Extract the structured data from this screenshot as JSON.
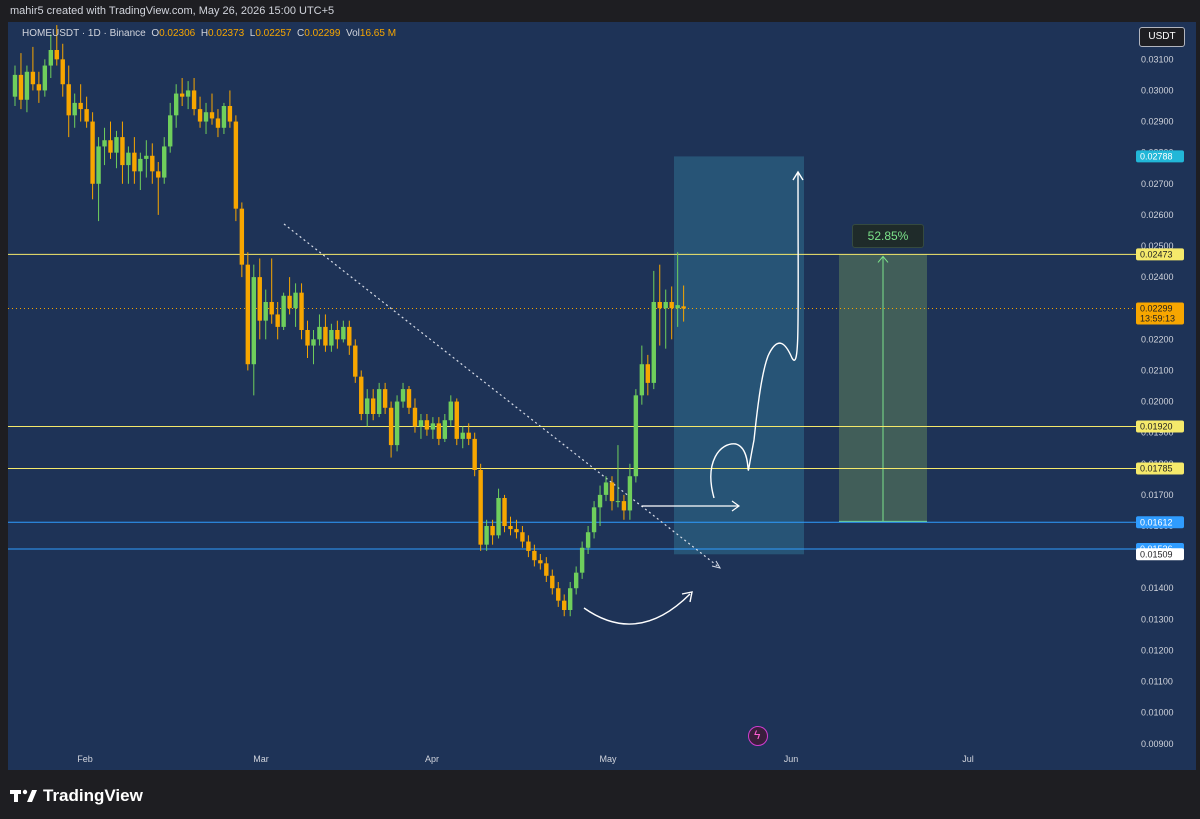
{
  "header": {
    "attribution": "mahir5 created with TradingView.com, May 26, 2026 15:00 UTC+5"
  },
  "legend": {
    "symbol": "HOMEUSDT · 1D · Binance",
    "o_label": "O",
    "o": "0.02306",
    "h_label": "H",
    "h": "0.02373",
    "l_label": "L",
    "l": "0.02257",
    "c_label": "C",
    "c": "0.02299",
    "vol_label": "Vol",
    "vol": "16.65 M"
  },
  "currency_button": "USDT",
  "footer": {
    "logo_text": "TradingView"
  },
  "colors": {
    "background": "#1e3357",
    "up": "#6fcf5c",
    "down": "#f7a600",
    "yellow_line": "#f5e96b",
    "blue_line": "#2f9cff",
    "target_box": "#2f6f8f",
    "profit_box": "#4d6e5a"
  },
  "chart_data": {
    "type": "candlestick",
    "title": "HOMEUSDT · 1D · Binance",
    "x_ticks": [
      "Feb",
      "Mar",
      "Apr",
      "May",
      "Jun",
      "Jul"
    ],
    "y_ticks": [
      "0.03100",
      "0.03000",
      "0.02900",
      "0.02800",
      "0.02700",
      "0.02600",
      "0.02500",
      "0.02400",
      "0.02300",
      "0.02200",
      "0.02100",
      "0.02000",
      "0.01900",
      "0.01800",
      "0.01700",
      "0.01600",
      "0.01500",
      "0.01400",
      "0.01300",
      "0.01200",
      "0.01100",
      "0.01000",
      "0.00900"
    ],
    "ylim": [
      0.0088,
      0.0322
    ],
    "price_labels": [
      {
        "value": 0.02788,
        "text": "0.02788",
        "style": "cyan"
      },
      {
        "value": 0.02473,
        "text": "0.02473",
        "style": "yellow"
      },
      {
        "value": 0.02299,
        "text": "0.02299",
        "sub": "13:59:13",
        "style": "orange"
      },
      {
        "value": 0.0192,
        "text": "0.01920",
        "style": "yellow"
      },
      {
        "value": 0.01785,
        "text": "0.01785",
        "style": "yellow"
      },
      {
        "value": 0.01615,
        "text": "0.01615",
        "style": "dark"
      },
      {
        "value": 0.01612,
        "text": "0.01612",
        "style": "blue"
      },
      {
        "value": 0.01526,
        "text": "0.01526",
        "style": "blue"
      },
      {
        "value": 0.01509,
        "text": "0.01509",
        "style": "white"
      }
    ],
    "horizontal_lines": [
      {
        "value": 0.02473,
        "color": "yellow"
      },
      {
        "value": 0.0192,
        "color": "yellow"
      },
      {
        "value": 0.01785,
        "color": "yellow"
      },
      {
        "value": 0.01612,
        "color": "blue"
      },
      {
        "value": 0.01526,
        "color": "blue"
      }
    ],
    "current_price": 0.02299,
    "target_zone": {
      "from": 0.01509,
      "to": 0.02788
    },
    "profit_zone": {
      "from": 0.01615,
      "to": 0.02473,
      "label": "52.85%"
    },
    "candles": [
      [
        0.0298,
        0.0308,
        0.0295,
        0.0305
      ],
      [
        0.0305,
        0.0312,
        0.0294,
        0.0297
      ],
      [
        0.0297,
        0.0308,
        0.0293,
        0.0306
      ],
      [
        0.0306,
        0.0314,
        0.03,
        0.0302
      ],
      [
        0.0302,
        0.0306,
        0.0296,
        0.03
      ],
      [
        0.03,
        0.031,
        0.0298,
        0.0308
      ],
      [
        0.0308,
        0.0318,
        0.0304,
        0.0313
      ],
      [
        0.0313,
        0.0321,
        0.0308,
        0.031
      ],
      [
        0.031,
        0.0315,
        0.0298,
        0.0302
      ],
      [
        0.0302,
        0.0308,
        0.0285,
        0.0292
      ],
      [
        0.0292,
        0.0299,
        0.0288,
        0.0296
      ],
      [
        0.0296,
        0.0302,
        0.029,
        0.0294
      ],
      [
        0.0294,
        0.0298,
        0.0288,
        0.029
      ],
      [
        0.029,
        0.0293,
        0.0265,
        0.027
      ],
      [
        0.027,
        0.0285,
        0.0258,
        0.0282
      ],
      [
        0.0282,
        0.0288,
        0.0276,
        0.0284
      ],
      [
        0.0284,
        0.029,
        0.0278,
        0.028
      ],
      [
        0.028,
        0.0287,
        0.0275,
        0.0285
      ],
      [
        0.0285,
        0.029,
        0.027,
        0.0276
      ],
      [
        0.0276,
        0.0282,
        0.027,
        0.028
      ],
      [
        0.028,
        0.0285,
        0.027,
        0.0274
      ],
      [
        0.0274,
        0.028,
        0.0268,
        0.0278
      ],
      [
        0.0278,
        0.0284,
        0.0272,
        0.0279
      ],
      [
        0.0279,
        0.0283,
        0.027,
        0.0274
      ],
      [
        0.0274,
        0.0277,
        0.026,
        0.0272
      ],
      [
        0.0272,
        0.0285,
        0.027,
        0.0282
      ],
      [
        0.0282,
        0.0296,
        0.028,
        0.0292
      ],
      [
        0.0292,
        0.0302,
        0.0288,
        0.0299
      ],
      [
        0.0299,
        0.0304,
        0.0295,
        0.0298
      ],
      [
        0.0298,
        0.0303,
        0.0294,
        0.03
      ],
      [
        0.03,
        0.0304,
        0.0292,
        0.0294
      ],
      [
        0.0294,
        0.0298,
        0.0288,
        0.029
      ],
      [
        0.029,
        0.0296,
        0.0286,
        0.0293
      ],
      [
        0.0293,
        0.0299,
        0.0289,
        0.0291
      ],
      [
        0.0291,
        0.0294,
        0.0285,
        0.0288
      ],
      [
        0.0288,
        0.0296,
        0.0286,
        0.0295
      ],
      [
        0.0295,
        0.03,
        0.0288,
        0.029
      ],
      [
        0.029,
        0.0292,
        0.0258,
        0.0262
      ],
      [
        0.0262,
        0.0264,
        0.024,
        0.0244
      ],
      [
        0.0244,
        0.0248,
        0.021,
        0.0212
      ],
      [
        0.0212,
        0.0244,
        0.0202,
        0.024
      ],
      [
        0.024,
        0.0246,
        0.022,
        0.0226
      ],
      [
        0.0226,
        0.0236,
        0.022,
        0.0232
      ],
      [
        0.0232,
        0.0246,
        0.0225,
        0.0228
      ],
      [
        0.0228,
        0.0232,
        0.022,
        0.0224
      ],
      [
        0.0224,
        0.0235,
        0.0223,
        0.0234
      ],
      [
        0.0234,
        0.024,
        0.0228,
        0.023
      ],
      [
        0.023,
        0.0238,
        0.0224,
        0.0235
      ],
      [
        0.0235,
        0.0238,
        0.022,
        0.0223
      ],
      [
        0.0223,
        0.0226,
        0.0214,
        0.0218
      ],
      [
        0.0218,
        0.0223,
        0.0212,
        0.022
      ],
      [
        0.022,
        0.0228,
        0.0218,
        0.0224
      ],
      [
        0.0224,
        0.0228,
        0.0216,
        0.0218
      ],
      [
        0.0218,
        0.0225,
        0.0216,
        0.0223
      ],
      [
        0.0223,
        0.0226,
        0.0217,
        0.022
      ],
      [
        0.022,
        0.0226,
        0.0219,
        0.0224
      ],
      [
        0.0224,
        0.0226,
        0.0215,
        0.0218
      ],
      [
        0.0218,
        0.022,
        0.0206,
        0.0208
      ],
      [
        0.0208,
        0.021,
        0.0194,
        0.0196
      ],
      [
        0.0196,
        0.0204,
        0.0192,
        0.0201
      ],
      [
        0.0201,
        0.0204,
        0.0194,
        0.0196
      ],
      [
        0.0196,
        0.0206,
        0.0195,
        0.0204
      ],
      [
        0.0204,
        0.0206,
        0.0196,
        0.0198
      ],
      [
        0.0198,
        0.02,
        0.0182,
        0.0186
      ],
      [
        0.0186,
        0.0202,
        0.0184,
        0.02
      ],
      [
        0.02,
        0.0206,
        0.0198,
        0.0204
      ],
      [
        0.0204,
        0.0205,
        0.0196,
        0.0198
      ],
      [
        0.0198,
        0.0201,
        0.019,
        0.0192
      ],
      [
        0.0192,
        0.0196,
        0.0188,
        0.0194
      ],
      [
        0.0194,
        0.0196,
        0.0189,
        0.0191
      ],
      [
        0.0191,
        0.0195,
        0.0188,
        0.0193
      ],
      [
        0.0193,
        0.0195,
        0.0186,
        0.0188
      ],
      [
        0.0188,
        0.0196,
        0.0187,
        0.0194
      ],
      [
        0.0194,
        0.0202,
        0.0192,
        0.02
      ],
      [
        0.02,
        0.0201,
        0.0186,
        0.0188
      ],
      [
        0.0188,
        0.0192,
        0.0185,
        0.019
      ],
      [
        0.019,
        0.0193,
        0.0186,
        0.0188
      ],
      [
        0.0188,
        0.019,
        0.0176,
        0.0178
      ],
      [
        0.0178,
        0.018,
        0.0152,
        0.0154
      ],
      [
        0.0154,
        0.0162,
        0.0152,
        0.016
      ],
      [
        0.016,
        0.0162,
        0.0154,
        0.0157
      ],
      [
        0.0157,
        0.0172,
        0.0156,
        0.0169
      ],
      [
        0.0169,
        0.017,
        0.0158,
        0.016
      ],
      [
        0.016,
        0.0163,
        0.0157,
        0.0159
      ],
      [
        0.0159,
        0.0162,
        0.0156,
        0.0158
      ],
      [
        0.0158,
        0.016,
        0.0153,
        0.0155
      ],
      [
        0.0155,
        0.0157,
        0.015,
        0.0152
      ],
      [
        0.0152,
        0.0154,
        0.0147,
        0.0149
      ],
      [
        0.0149,
        0.0151,
        0.0146,
        0.0148
      ],
      [
        0.0148,
        0.015,
        0.0142,
        0.0144
      ],
      [
        0.0144,
        0.0146,
        0.0138,
        0.014
      ],
      [
        0.014,
        0.0142,
        0.0134,
        0.0136
      ],
      [
        0.0136,
        0.0138,
        0.0131,
        0.0133
      ],
      [
        0.0133,
        0.0142,
        0.0131,
        0.014
      ],
      [
        0.014,
        0.0147,
        0.0138,
        0.0145
      ],
      [
        0.0145,
        0.0155,
        0.0143,
        0.0153
      ],
      [
        0.0153,
        0.016,
        0.0151,
        0.0158
      ],
      [
        0.0158,
        0.0168,
        0.0156,
        0.0166
      ],
      [
        0.0166,
        0.0173,
        0.016,
        0.017
      ],
      [
        0.017,
        0.0176,
        0.0168,
        0.0174
      ],
      [
        0.0174,
        0.0176,
        0.0165,
        0.0168
      ],
      [
        0.0168,
        0.0186,
        0.0166,
        0.0168
      ],
      [
        0.0168,
        0.017,
        0.0162,
        0.0165
      ],
      [
        0.0165,
        0.018,
        0.0162,
        0.0176
      ],
      [
        0.0176,
        0.0204,
        0.0174,
        0.0202
      ],
      [
        0.0202,
        0.0218,
        0.0199,
        0.0212
      ],
      [
        0.0212,
        0.0215,
        0.0202,
        0.0206
      ],
      [
        0.0206,
        0.0242,
        0.0204,
        0.0232
      ],
      [
        0.0232,
        0.0244,
        0.0218,
        0.023
      ],
      [
        0.023,
        0.0236,
        0.0217,
        0.0232
      ],
      [
        0.0232,
        0.0237,
        0.022,
        0.023
      ],
      [
        0.023,
        0.0248,
        0.0224,
        0.0231
      ],
      [
        0.02306,
        0.02373,
        0.02257,
        0.02299
      ]
    ]
  }
}
